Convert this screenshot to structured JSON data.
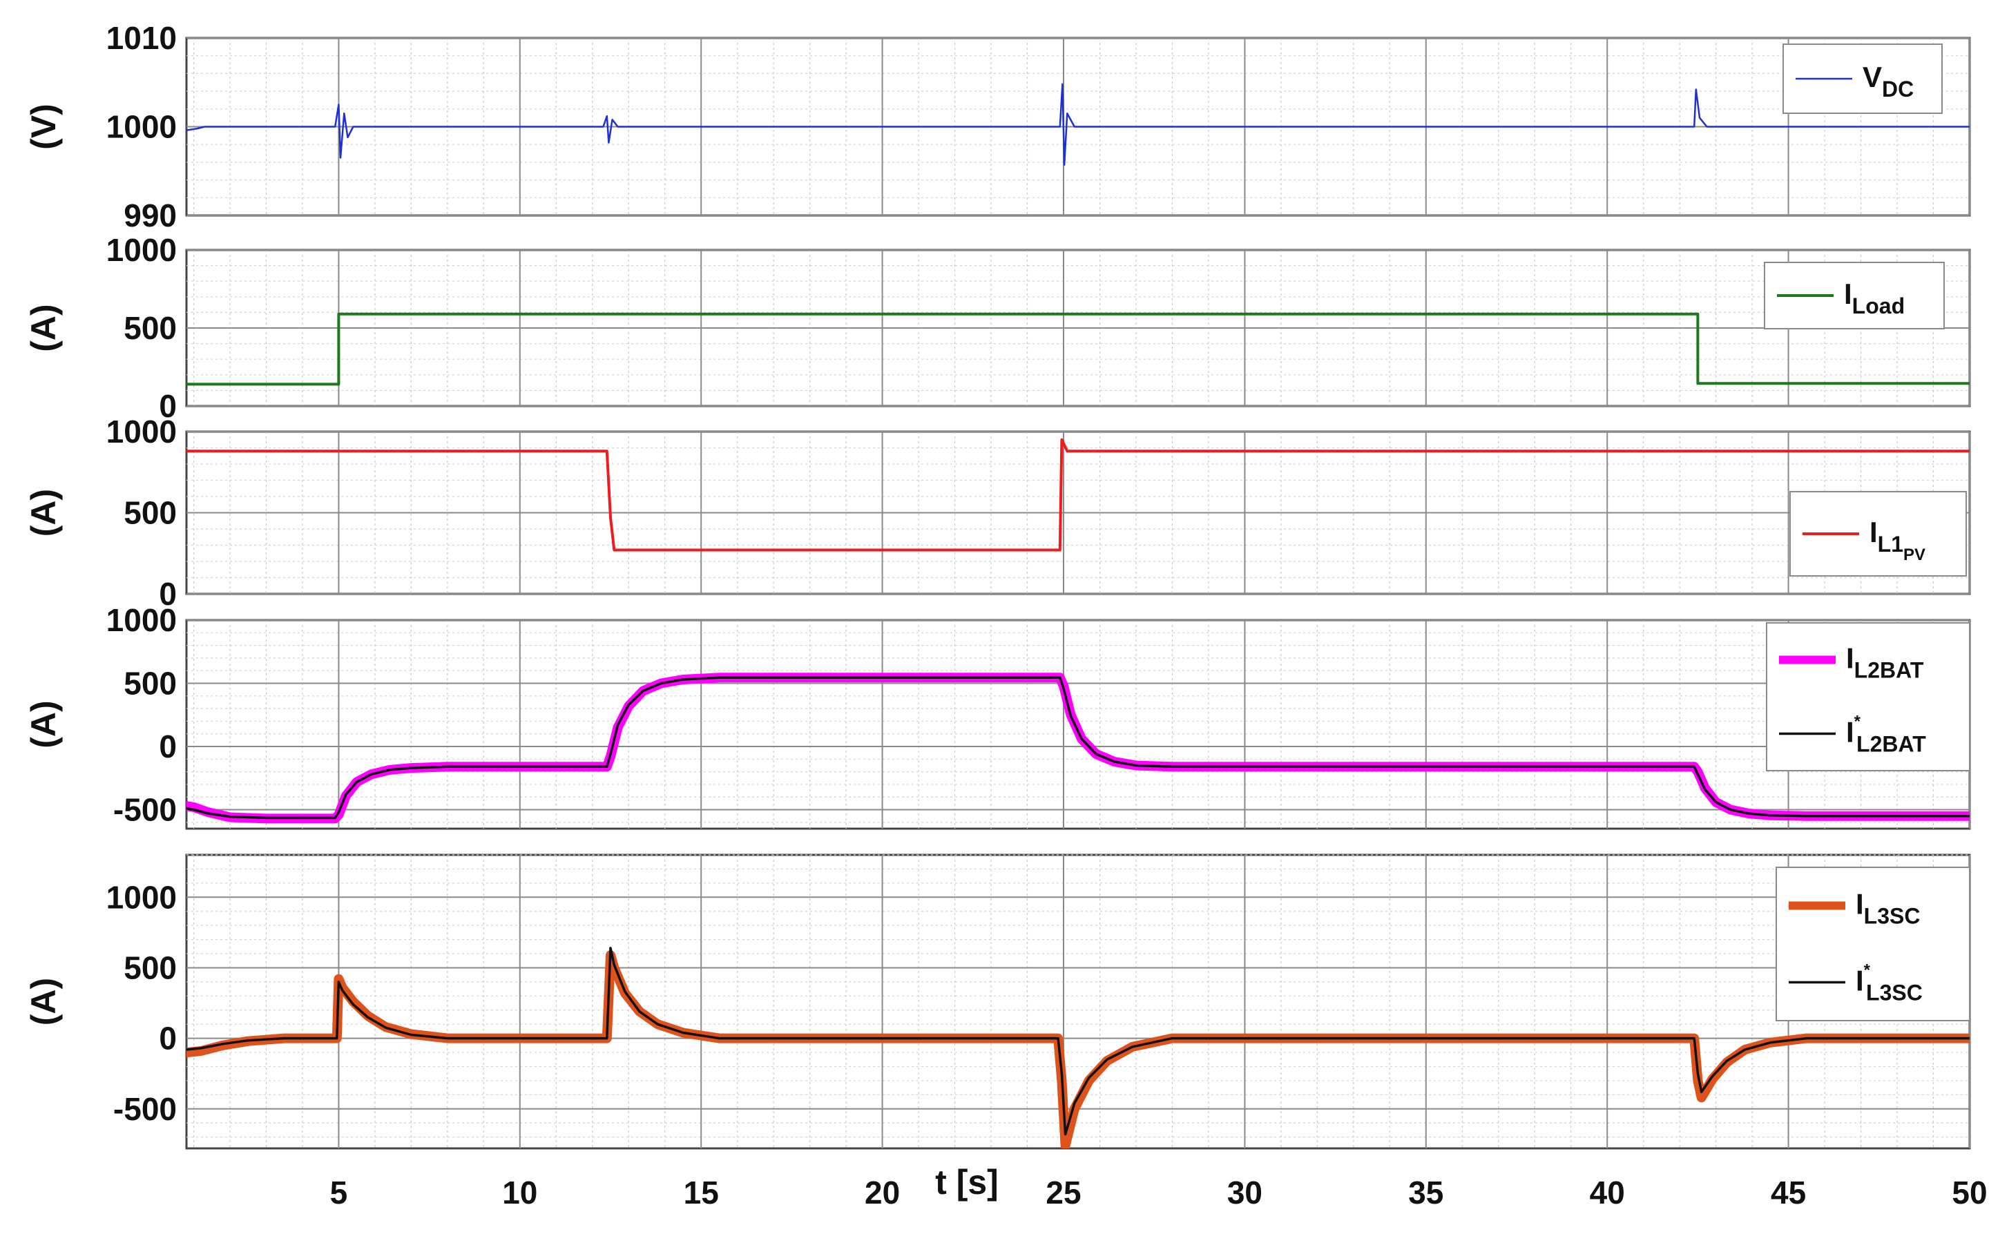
{
  "chart_data": {
    "type": "line",
    "x_axis": {
      "label": "t [s]",
      "xlim": [
        0.8,
        50
      ],
      "ticks": [
        5,
        10,
        15,
        20,
        25,
        30,
        35,
        40,
        45,
        50
      ],
      "tick_labels": [
        "5",
        "10",
        "15",
        "20",
        "25",
        "30",
        "35",
        "40",
        "45",
        "50"
      ]
    },
    "grid": "on (major and minor)",
    "panels": [
      {
        "id": "vdc",
        "ylabel": "(V)",
        "ylim": [
          990,
          1010
        ],
        "yticks": [
          990,
          1000,
          1010
        ],
        "ytick_labels": [
          "990",
          "1000",
          "1010"
        ],
        "legend_position": "top-right",
        "series": [
          {
            "name": "V",
            "subscript": "DC",
            "sup": "",
            "color": "#1f2fd8",
            "width": 2.5,
            "x": [
              0.8,
              1.1,
              1.3,
              4.9,
              5.0,
              5.05,
              5.15,
              5.25,
              5.4,
              12.3,
              12.4,
              12.45,
              12.55,
              12.7,
              24.9,
              24.97,
              25.02,
              25.1,
              25.3,
              42.4,
              42.45,
              42.55,
              42.75,
              50
            ],
            "y": [
              999.6,
              999.8,
              1000,
              1000,
              1002.5,
              996.5,
              1001.5,
              998.8,
              1000,
              1000,
              1001.2,
              998.2,
              1000.8,
              1000,
              1000,
              1004.8,
              995.7,
              1001.5,
              1000,
              1000,
              1004.2,
              1001,
              1000,
              1000
            ]
          }
        ]
      },
      {
        "id": "iload",
        "ylabel": "(A)",
        "ylim": [
          0,
          1000
        ],
        "yticks": [
          0,
          500,
          1000
        ],
        "ytick_labels": [
          "0",
          "500",
          "1000"
        ],
        "legend_position": "top-right",
        "series": [
          {
            "name": "I",
            "subscript": "Load",
            "sup": "",
            "color": "#1a7a1a",
            "width": 4,
            "x": [
              0.8,
              5.0,
              5.0,
              42.5,
              42.5,
              50
            ],
            "y": [
              140,
              140,
              590,
              590,
              145,
              145
            ]
          }
        ]
      },
      {
        "id": "il1pv",
        "ylabel": "(A)",
        "ylim": [
          0,
          1000
        ],
        "yticks": [
          0,
          500,
          1000
        ],
        "ytick_labels": [
          "0",
          "500",
          "1000"
        ],
        "legend_position": "center-right",
        "series": [
          {
            "name": "I",
            "subscript": "L1",
            "subsub": "PV",
            "sup": "",
            "color": "#ee1c1c",
            "width": 4,
            "x": [
              0.8,
              12.4,
              12.5,
              12.6,
              24.9,
              24.95,
              25.1,
              25.4,
              50
            ],
            "y": [
              880,
              880,
              470,
              270,
              270,
              950,
              880,
              880,
              880
            ]
          }
        ]
      },
      {
        "id": "il2bat",
        "ylabel": "(A)",
        "ylim": [
          -650,
          1000
        ],
        "yticks": [
          -500,
          0,
          500,
          1000
        ],
        "ytick_labels": [
          "-500",
          "0",
          "500",
          "1000"
        ],
        "legend_position": "top-right",
        "series": [
          {
            "name": "I",
            "subscript": "L2BAT",
            "sup": "",
            "color": "#ff00ff",
            "width": 14,
            "x": [
              0.8,
              1.0,
              1.4,
              2.0,
              3.0,
              4.9,
              5.0,
              5.2,
              5.5,
              5.9,
              6.4,
              7.0,
              8.0,
              12.4,
              12.5,
              12.7,
              13.0,
              13.4,
              13.9,
              14.5,
              15.5,
              24.9,
              25.0,
              25.2,
              25.5,
              25.9,
              26.4,
              27.0,
              28.0,
              42.4,
              42.5,
              42.7,
              43.0,
              43.4,
              43.9,
              44.5,
              45.5,
              50
            ],
            "y": [
              -470,
              -480,
              -520,
              -560,
              -570,
              -570,
              -540,
              -390,
              -280,
              -220,
              -185,
              -170,
              -160,
              -160,
              -80,
              150,
              320,
              440,
              500,
              530,
              545,
              545,
              480,
              250,
              60,
              -60,
              -120,
              -150,
              -160,
              -160,
              -200,
              -330,
              -440,
              -500,
              -530,
              -545,
              -550,
              -550
            ]
          },
          {
            "name": "I",
            "subscript": "L2BAT",
            "sup": "*",
            "color": "#111111",
            "width": 3.5,
            "x": [
              0.8,
              1.0,
              1.4,
              2.0,
              3.0,
              4.9,
              5.0,
              5.2,
              5.5,
              5.9,
              6.4,
              7.0,
              8.0,
              12.4,
              12.5,
              12.7,
              13.0,
              13.4,
              13.9,
              14.5,
              15.5,
              24.9,
              25.0,
              25.2,
              25.5,
              25.9,
              26.4,
              27.0,
              28.0,
              42.4,
              42.5,
              42.7,
              43.0,
              43.4,
              43.9,
              44.5,
              45.5,
              50
            ],
            "y": [
              -490,
              -500,
              -530,
              -555,
              -565,
              -565,
              -520,
              -380,
              -280,
              -220,
              -185,
              -170,
              -160,
              -160,
              -60,
              170,
              330,
              440,
              500,
              530,
              545,
              545,
              460,
              240,
              60,
              -60,
              -120,
              -150,
              -160,
              -160,
              -220,
              -340,
              -440,
              -500,
              -530,
              -545,
              -550,
              -550
            ]
          }
        ]
      },
      {
        "id": "il3sc",
        "ylabel": "(A)",
        "ylim": [
          -780,
          1300
        ],
        "yticks": [
          -500,
          0,
          500,
          1000
        ],
        "ytick_labels": [
          "-500",
          "0",
          "500",
          "1000"
        ],
        "legend_position": "top-right",
        "series": [
          {
            "name": "I",
            "subscript": "L3SC",
            "sup": "",
            "color": "#e0521c",
            "width": 14,
            "x": [
              0.8,
              1.2,
              1.8,
              2.5,
              3.5,
              4.95,
              5.0,
              5.1,
              5.4,
              5.8,
              6.3,
              7.0,
              8.0,
              12.4,
              12.5,
              12.6,
              12.9,
              13.3,
              13.8,
              14.5,
              15.5,
              24.85,
              24.95,
              25.05,
              25.3,
              25.7,
              26.2,
              26.9,
              28.0,
              42.4,
              42.5,
              42.6,
              42.9,
              43.3,
              43.8,
              44.5,
              45.5,
              50
            ],
            "y": [
              -100,
              -90,
              -50,
              -20,
              0,
              0,
              420,
              360,
              260,
              160,
              80,
              30,
              0,
              0,
              590,
              500,
              320,
              190,
              100,
              40,
              0,
              0,
              -300,
              -760,
              -500,
              -300,
              -160,
              -60,
              0,
              0,
              -300,
              -420,
              -290,
              -170,
              -80,
              -30,
              0,
              0
            ]
          },
          {
            "name": "I",
            "subscript": "L3SC",
            "sup": "*",
            "color": "#111111",
            "width": 3.5,
            "x": [
              0.8,
              1.2,
              1.8,
              2.5,
              3.5,
              4.95,
              5.0,
              5.1,
              5.4,
              5.8,
              6.3,
              7.0,
              8.0,
              12.4,
              12.5,
              12.6,
              12.9,
              13.3,
              13.8,
              14.5,
              15.5,
              24.85,
              24.95,
              25.05,
              25.3,
              25.7,
              26.2,
              26.9,
              28.0,
              42.4,
              42.5,
              42.6,
              42.9,
              43.3,
              43.8,
              44.5,
              45.5,
              50
            ],
            "y": [
              -80,
              -70,
              -40,
              -15,
              0,
              0,
              400,
              340,
              240,
              150,
              75,
              25,
              0,
              0,
              640,
              520,
              330,
              190,
              100,
              40,
              0,
              0,
              -250,
              -680,
              -460,
              -280,
              -150,
              -60,
              0,
              0,
              -250,
              -380,
              -270,
              -160,
              -80,
              -30,
              0,
              0
            ]
          }
        ]
      }
    ]
  }
}
